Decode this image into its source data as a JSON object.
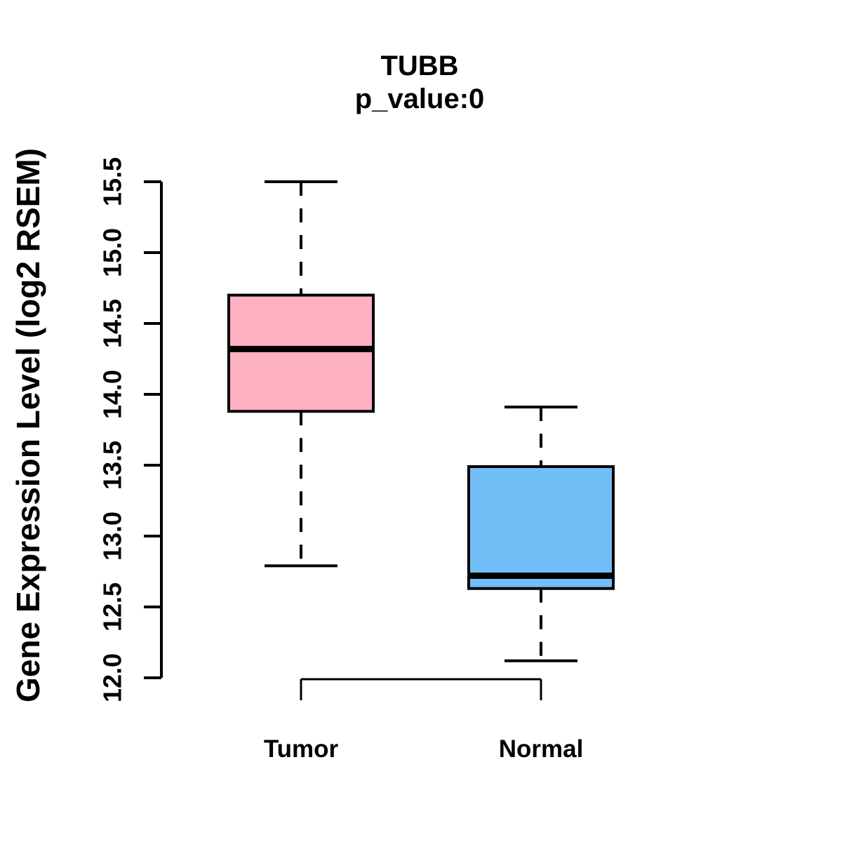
{
  "chart_data": {
    "type": "boxplot",
    "title": "TUBB",
    "subtitle": "p_value:0",
    "ylabel": "Gene Expression Level (log2 RSEM)",
    "xlabel": "",
    "ylim": [
      12.0,
      15.5
    ],
    "yticks": [
      "12.0",
      "12.5",
      "13.0",
      "13.5",
      "14.0",
      "14.5",
      "15.0",
      "15.5"
    ],
    "grid": false,
    "legend": "none",
    "stroke_color": "#000000",
    "background_color": "#FFFFFF",
    "groups": [
      {
        "label": "Tumor",
        "fill_color": "#FFB1C4",
        "whisker_low": 12.79,
        "q1": 13.88,
        "median": 14.32,
        "q3": 14.7,
        "whisker_high": 15.5
      },
      {
        "label": "Normal",
        "fill_color": "#72BEF7",
        "whisker_low": 12.12,
        "q1": 12.63,
        "median": 12.72,
        "q3": 13.49,
        "whisker_high": 13.91
      }
    ]
  }
}
